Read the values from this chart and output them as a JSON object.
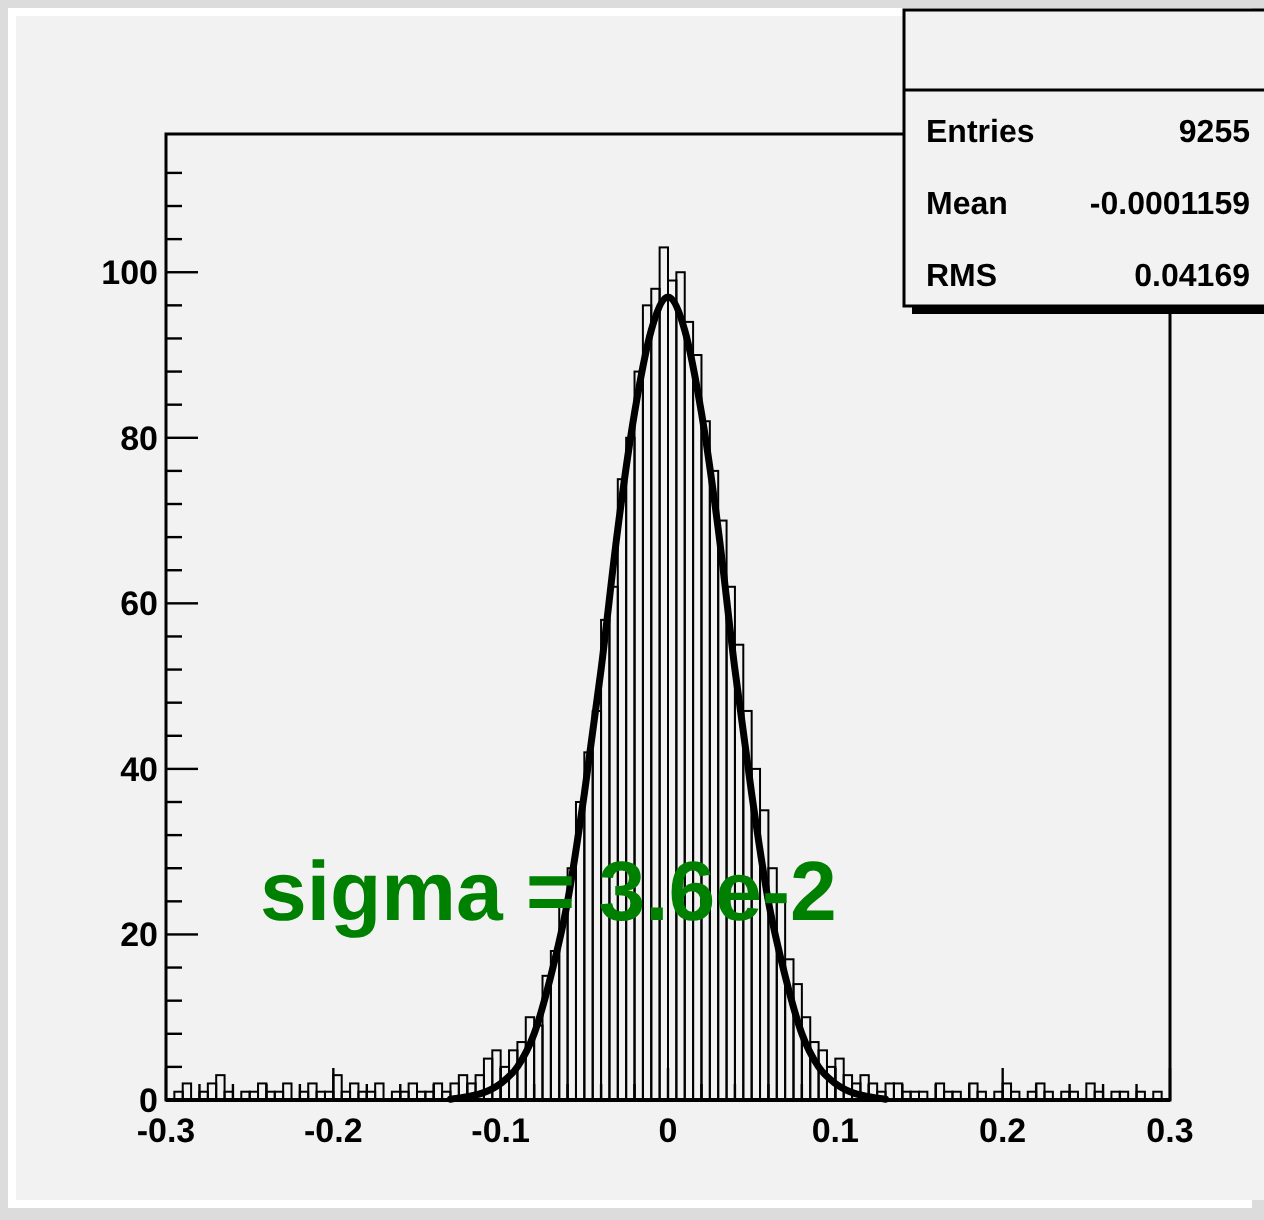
{
  "chart_data": {
    "type": "histogram",
    "xlim": [
      -0.3,
      0.3
    ],
    "ylim": [
      0,
      116.7
    ],
    "xticks": [
      -0.3,
      {
        "value": -0.28,
        "label": null
      },
      {
        "value": -0.26,
        "label": null
      },
      {
        "value": -0.24,
        "label": null
      },
      {
        "value": -0.22,
        "label": null
      },
      -0.2,
      {
        "value": -0.18,
        "label": null
      },
      {
        "value": -0.16,
        "label": null
      },
      {
        "value": -0.14,
        "label": null
      },
      {
        "value": -0.12,
        "label": null
      },
      -0.1,
      {
        "value": -0.08,
        "label": null
      },
      {
        "value": -0.06,
        "label": null
      },
      {
        "value": -0.04,
        "label": null
      },
      {
        "value": -0.02,
        "label": null
      },
      0,
      {
        "value": 0.02,
        "label": null
      },
      {
        "value": 0.04,
        "label": null
      },
      {
        "value": 0.06,
        "label": null
      },
      {
        "value": 0.08,
        "label": null
      },
      0.1,
      {
        "value": 0.12,
        "label": null
      },
      {
        "value": 0.14,
        "label": null
      },
      {
        "value": 0.16,
        "label": null
      },
      {
        "value": 0.18,
        "label": null
      },
      0.2,
      {
        "value": 0.22,
        "label": null
      },
      {
        "value": 0.24,
        "label": null
      },
      {
        "value": 0.26,
        "label": null
      },
      {
        "value": 0.28,
        "label": null
      },
      0.3
    ],
    "yticks": [
      0,
      {
        "value": 4,
        "label": null
      },
      {
        "value": 8,
        "label": null
      },
      {
        "value": 12,
        "label": null
      },
      {
        "value": 16,
        "label": null
      },
      20,
      {
        "value": 24,
        "label": null
      },
      {
        "value": 28,
        "label": null
      },
      {
        "value": 32,
        "label": null
      },
      {
        "value": 36,
        "label": null
      },
      40,
      {
        "value": 44,
        "label": null
      },
      {
        "value": 48,
        "label": null
      },
      {
        "value": 52,
        "label": null
      },
      {
        "value": 56,
        "label": null
      },
      60,
      {
        "value": 64,
        "label": null
      },
      {
        "value": 68,
        "label": null
      },
      {
        "value": 72,
        "label": null
      },
      {
        "value": 76,
        "label": null
      },
      80,
      {
        "value": 84,
        "label": null
      },
      {
        "value": 88,
        "label": null
      },
      {
        "value": 92,
        "label": null
      },
      {
        "value": 96,
        "label": null
      },
      100,
      {
        "value": 104,
        "label": null
      },
      {
        "value": 108,
        "label": null
      },
      {
        "value": 112,
        "label": null
      }
    ],
    "series": [
      {
        "type": "histogram",
        "color": "#000000",
        "bins": [
          -0.3,
          -0.295,
          -0.29,
          -0.285,
          -0.28,
          -0.275,
          -0.27,
          -0.265,
          -0.26,
          -0.255,
          -0.25,
          -0.245,
          -0.24,
          -0.235,
          -0.23,
          -0.225,
          -0.22,
          -0.215,
          -0.21,
          -0.205,
          -0.2,
          -0.195,
          -0.19,
          -0.185,
          -0.18,
          -0.175,
          -0.17,
          -0.165,
          -0.16,
          -0.155,
          -0.15,
          -0.145,
          -0.14,
          -0.135,
          -0.13,
          -0.125,
          -0.12,
          -0.115,
          -0.11,
          -0.105,
          -0.1,
          -0.095,
          -0.09,
          -0.085,
          -0.08,
          -0.075,
          -0.07,
          -0.065,
          -0.06,
          -0.055,
          -0.05,
          -0.045,
          -0.04,
          -0.035,
          -0.03,
          -0.025,
          -0.02,
          -0.015,
          -0.01,
          -0.005,
          0,
          0.005,
          0.01,
          0.015,
          0.02,
          0.025,
          0.03,
          0.035,
          0.04,
          0.045,
          0.05,
          0.055,
          0.06,
          0.065,
          0.07,
          0.075,
          0.08,
          0.085,
          0.09,
          0.095,
          0.1,
          0.105,
          0.11,
          0.115,
          0.12,
          0.125,
          0.13,
          0.135,
          0.14,
          0.145,
          0.15,
          0.155,
          0.16,
          0.165,
          0.17,
          0.175,
          0.18,
          0.185,
          0.19,
          0.195,
          0.2,
          0.205,
          0.21,
          0.215,
          0.22,
          0.225,
          0.23,
          0.235,
          0.24,
          0.245,
          0.25,
          0.255,
          0.26,
          0.265,
          0.27,
          0.275,
          0.28,
          0.285,
          0.29,
          0.295,
          0.3
        ],
        "values": [
          0,
          1,
          2,
          0,
          1,
          2,
          3,
          1,
          0,
          1,
          1,
          2,
          1,
          1,
          2,
          0,
          1,
          2,
          1,
          1,
          3,
          1,
          2,
          1,
          1,
          2,
          0,
          1,
          1,
          2,
          1,
          1,
          2,
          1,
          2,
          3,
          2,
          3,
          5,
          6,
          4,
          6,
          7,
          10,
          9,
          15,
          18,
          24,
          28,
          36,
          42,
          47,
          58,
          62,
          75,
          80,
          88,
          96,
          98,
          103,
          99,
          100,
          94,
          90,
          82,
          76,
          70,
          62,
          55,
          47,
          40,
          35,
          28,
          24,
          17,
          14,
          10,
          7,
          6,
          4,
          5,
          3,
          2,
          3,
          2,
          1,
          2,
          2,
          1,
          1,
          1,
          0,
          2,
          1,
          1,
          0,
          2,
          1,
          0,
          1,
          2,
          1,
          0,
          1,
          2,
          1,
          0,
          1,
          1,
          0,
          2,
          1,
          0,
          1,
          1,
          0,
          1,
          0,
          1,
          0
        ]
      },
      {
        "type": "line",
        "color": "#000000",
        "x": [
          -0.13,
          -0.12,
          -0.11,
          -0.1,
          -0.09,
          -0.08,
          -0.07,
          -0.06,
          -0.05,
          -0.04,
          -0.03,
          -0.02,
          -0.01,
          0,
          0.01,
          0.02,
          0.03,
          0.04,
          0.05,
          0.06,
          0.07,
          0.08,
          0.09,
          0.1,
          0.11,
          0.12,
          0.13
        ],
        "values": [
          0.1,
          0.4,
          0.9,
          2,
          4,
          8,
          15,
          24,
          37,
          52,
          69,
          83,
          93,
          97,
          93,
          83,
          69,
          52,
          37,
          24,
          15,
          8,
          4,
          2,
          0.9,
          0.4,
          0.1
        ]
      }
    ],
    "annotations": [
      "Entries",
      "9255",
      "Mean",
      "-0.0001159",
      "RMS",
      "0.04169",
      "sigma = 3.6e-2"
    ]
  }
}
